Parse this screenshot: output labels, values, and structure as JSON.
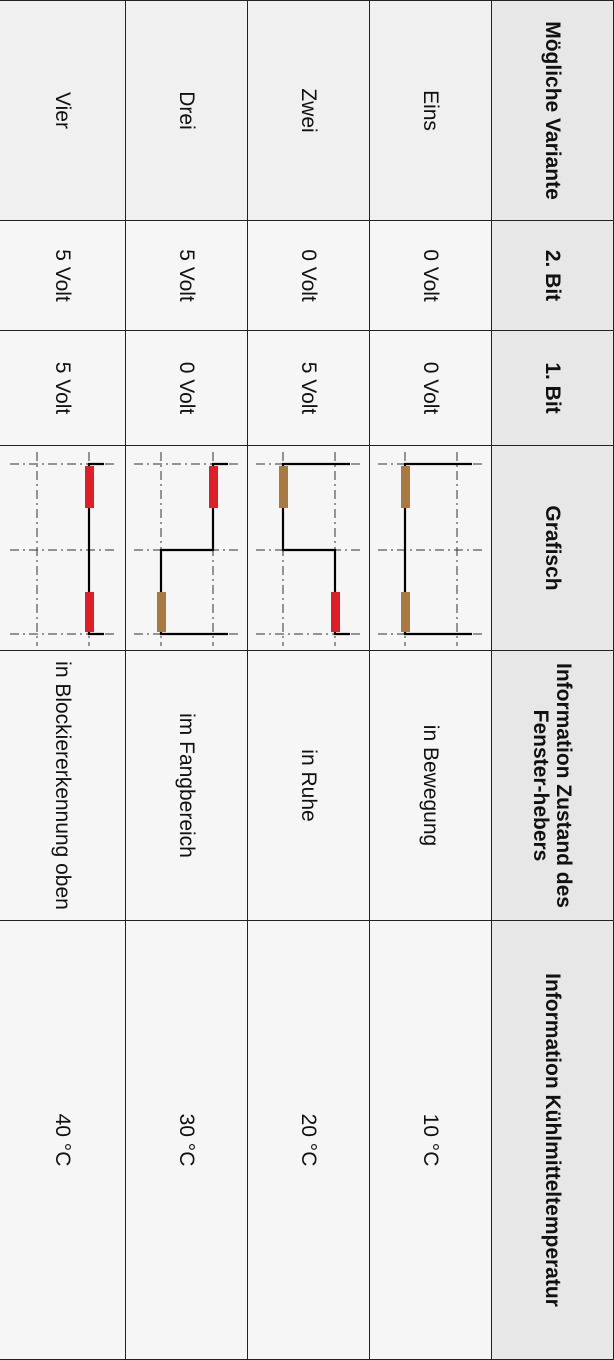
{
  "headers": {
    "variante": "Mögliche Variante",
    "bit2": "2. Bit",
    "bit1": "1. Bit",
    "grafisch": "Grafisch",
    "fensterheber": "Information Zustand des Fenster-hebers",
    "kuehlmittel": "Information Kühlmitteltemperatur"
  },
  "rows": [
    {
      "variante": "Eins",
      "bit2": "0 Volt",
      "bit1": "0 Volt",
      "zustand": "in Bewegung",
      "temperatur": "10 °C",
      "signal": [
        "low",
        "low"
      ]
    },
    {
      "variante": "Zwei",
      "bit2": "0 Volt",
      "bit1": "5 Volt",
      "zustand": "in Ruhe",
      "temperatur": "20 °C",
      "signal": [
        "low",
        "high"
      ]
    },
    {
      "variante": "Drei",
      "bit2": "5 Volt",
      "bit1": "0 Volt",
      "zustand": "im Fangbereich",
      "temperatur": "30 °C",
      "signal": [
        "high",
        "low"
      ]
    },
    {
      "variante": "Vier",
      "bit2": "5 Volt",
      "bit1": "5 Volt",
      "zustand": "in Blockiererkennung oben",
      "temperatur": "40 °C",
      "signal": [
        "high",
        "high"
      ]
    }
  ],
  "colors": {
    "low_bit": "#a87a42",
    "high_bit": "#dd1f2a",
    "signal_line": "#000000",
    "grid_line": "#333333"
  }
}
